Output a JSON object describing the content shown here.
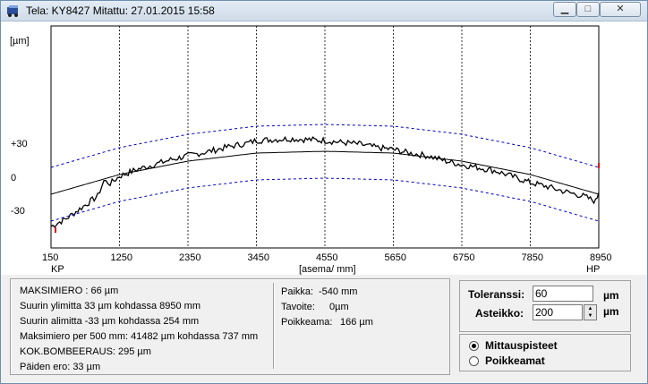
{
  "window": {
    "title": "Tela: KY8427 Mitattu: 27.01.2015 15:58",
    "minimize_glyph": "▁",
    "maximize_glyph": "□",
    "close_glyph": "✕"
  },
  "chart_data": {
    "type": "line",
    "ylabel": "[µm]",
    "xlabel": "[asema/ mm]",
    "x_ticks": [
      "150",
      "1250",
      "2350",
      "3450",
      "4550",
      "5650",
      "6750",
      "7850",
      "8950"
    ],
    "x_end_labels": {
      "left": "KP",
      "right": "HP"
    },
    "y_ticks": [
      "+30",
      "0",
      "-30"
    ],
    "xlim": [
      150,
      8950
    ],
    "series": [
      {
        "name": "",
        "color": "#000000",
        "style": "solid-noisy",
        "x": [
          150,
          400,
          700,
          900,
          1000,
          1100,
          1250,
          1500,
          1800,
          2100,
          2350,
          2700,
          3000,
          3300,
          3450,
          3700,
          4000,
          4300,
          4550,
          4800,
          5100,
          5400,
          5650,
          5900,
          6200,
          6500,
          6750,
          7000,
          7300,
          7600,
          7850,
          8100,
          8400,
          8700,
          8900,
          8950
        ],
        "y": [
          24,
          33,
          48,
          58,
          75,
          72,
          80,
          87,
          93,
          99,
          103,
          108,
          113,
          117,
          120,
          121,
          122,
          121,
          120,
          118,
          116,
          112,
          110,
          106,
          103,
          97,
          93,
          90,
          86,
          79,
          73,
          69,
          63,
          58,
          52,
          62
        ]
      },
      {
        "name": "",
        "color": "#000000",
        "style": "solid-smooth",
        "x": [
          150,
          1250,
          2350,
          3450,
          4550,
          5650,
          6750,
          7850,
          8950
        ],
        "y": [
          60,
          82,
          97,
          106,
          108,
          106,
          97,
          82,
          60
        ]
      },
      {
        "name": "",
        "color": "#0000cc",
        "style": "dashed",
        "x": [
          150,
          1250,
          2350,
          3450,
          4550,
          5650,
          6750,
          7850,
          8950
        ],
        "y": [
          90,
          112,
          127,
          136,
          138,
          136,
          127,
          112,
          90
        ]
      },
      {
        "name": "",
        "color": "#0000cc",
        "style": "dashed",
        "x": [
          150,
          1250,
          2350,
          3450,
          4550,
          5650,
          6750,
          7850,
          8950
        ],
        "y": [
          30,
          52,
          67,
          76,
          78,
          76,
          67,
          52,
          30
        ]
      }
    ],
    "grid": "vertical-dotted",
    "legend": "none"
  },
  "stats": {
    "lines": [
      "MAKSIMIERO : 66 µm",
      "Suurin ylimitta 33 µm kohdassa 8950 mm",
      "Suurin alimitta -33 µm kohdassa 254 mm",
      "Maksimiero per 500  mm: 41482 µm kohdassa 737 mm",
      "KOK.BOMBEERAUS: 295 µm",
      "Päiden ero: 33 µm"
    ],
    "right_lines": [
      {
        "label": "Paikka:",
        "value": "-540 mm"
      },
      {
        "label": "Tavoite:",
        "value": "0µm"
      },
      {
        "label": "Poikkeama:",
        "value": "166 µm"
      }
    ]
  },
  "controls": {
    "toleranssi_label": "Toleranssi:",
    "toleranssi_value": "60",
    "asteikko_label": "Asteikko:",
    "asteikko_value": "200",
    "unit": "µm",
    "radio_1": "Mittauspisteet",
    "radio_2": "Poikkeamat",
    "selected": "radio_1"
  }
}
